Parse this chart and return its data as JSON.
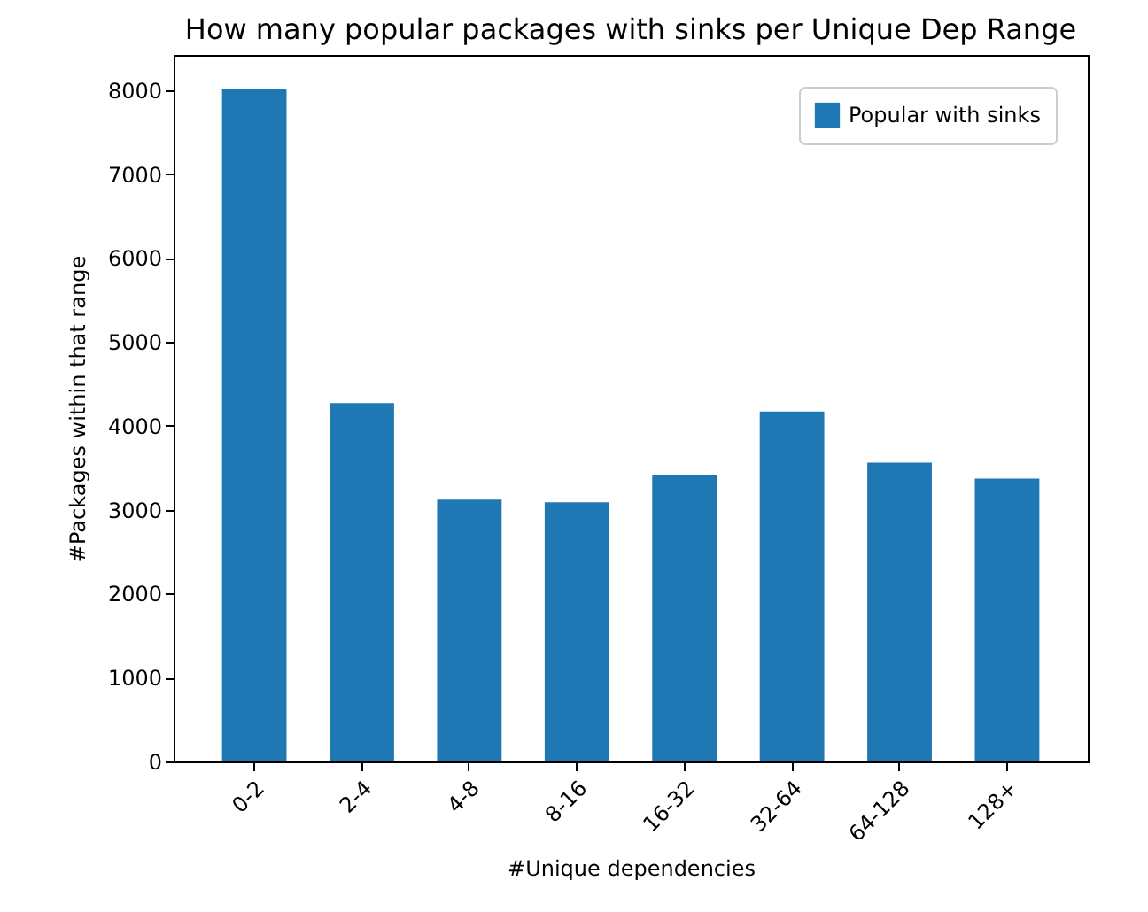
{
  "chart_data": {
    "type": "bar",
    "title": "How many popular packages with sinks per Unique Dep Range",
    "xlabel": "#Unique dependencies",
    "ylabel": "#Packages within that range",
    "categories": [
      "0-2",
      "2-4",
      "4-8",
      "8-16",
      "16-32",
      "32-64",
      "64-128",
      "128+"
    ],
    "series": [
      {
        "name": "Popular with sinks",
        "color": "#1f77b4",
        "values": [
          8010,
          4270,
          3120,
          3090,
          3410,
          4170,
          3560,
          3370
        ]
      }
    ],
    "ylim": [
      0,
      8420
    ],
    "yticks": [
      0,
      1000,
      2000,
      3000,
      4000,
      5000,
      6000,
      7000,
      8000
    ],
    "grid": false,
    "legend": "top right"
  }
}
